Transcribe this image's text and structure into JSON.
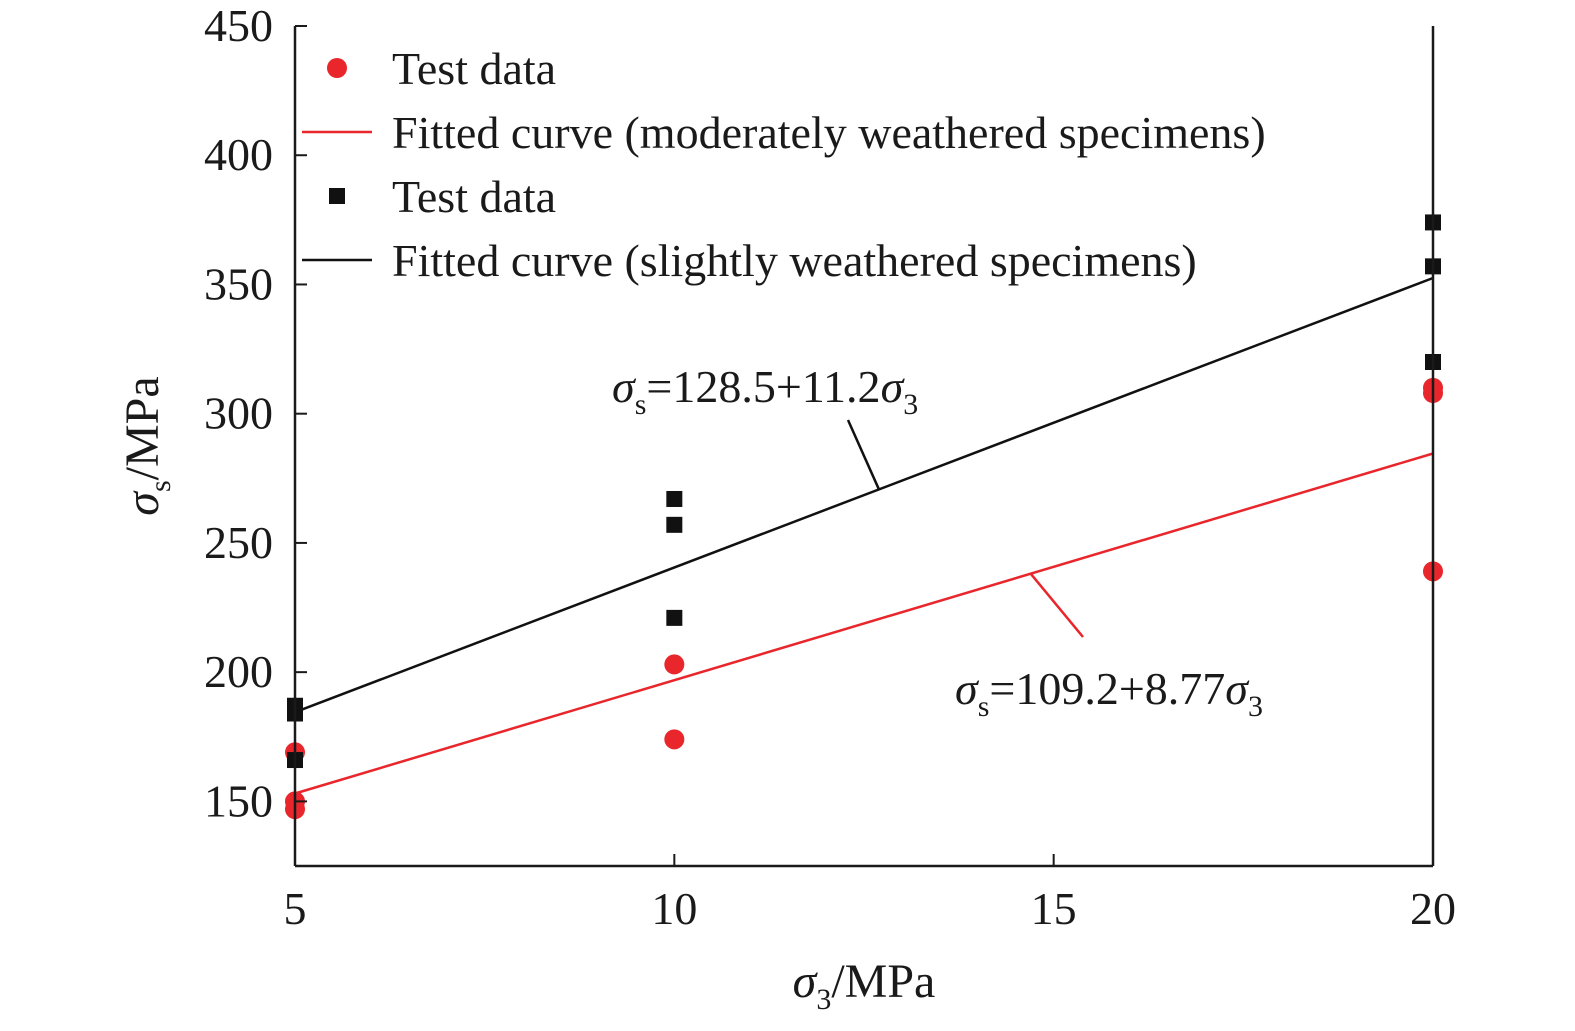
{
  "chart_data": {
    "type": "scatter",
    "xlabel": {
      "sym": "σ",
      "sub": "3",
      "unit": "/MPa"
    },
    "ylabel": {
      "sym": "σ",
      "sub": "s",
      "unit": "/MPa"
    },
    "xlim": [
      5,
      20
    ],
    "ylim": [
      125,
      450
    ],
    "xticks": [
      5,
      10,
      15,
      20
    ],
    "yticks": [
      150,
      200,
      250,
      300,
      350,
      400,
      450
    ],
    "grid": false,
    "legend_position": "top-left",
    "series": [
      {
        "name": "Test data",
        "kind": "points",
        "marker": "circle",
        "color": "#e8262b",
        "points": [
          [
            5,
            169
          ],
          [
            5,
            150
          ],
          [
            5,
            147
          ],
          [
            10,
            203
          ],
          [
            10,
            174
          ],
          [
            20,
            310
          ],
          [
            20,
            308
          ],
          [
            20,
            239
          ]
        ]
      },
      {
        "name": "Fitted curve (moderately weathered specimens)",
        "kind": "line",
        "color": "#e8262b",
        "intercept": 109.2,
        "slope": 8.77,
        "x_range": [
          5,
          20
        ]
      },
      {
        "name": "Test data",
        "kind": "points",
        "marker": "square",
        "color": "#111111",
        "points": [
          [
            5,
            187
          ],
          [
            5,
            184
          ],
          [
            5,
            166
          ],
          [
            10,
            267
          ],
          [
            10,
            257
          ],
          [
            10,
            221
          ],
          [
            20,
            374
          ],
          [
            20,
            357
          ],
          [
            20,
            320
          ]
        ]
      },
      {
        "name": "Fitted curve (slightly weathered specimens)",
        "kind": "line",
        "color": "#111111",
        "intercept": 128.5,
        "slope": 11.2,
        "x_range": [
          5,
          20
        ]
      }
    ],
    "annotations": [
      {
        "series_index": 3,
        "lhs_sym": "σ",
        "lhs_sub": "s",
        "rhs": "=128.5+11.2",
        "var_sym": "σ",
        "var_sub": "3",
        "target": [
          12.7,
          270.5
        ]
      },
      {
        "series_index": 1,
        "lhs_sym": "σ",
        "lhs_sub": "s",
        "rhs": "=109.2+8.77",
        "var_sym": "σ",
        "var_sub": "3",
        "target": [
          14.7,
          238
        ]
      }
    ]
  }
}
